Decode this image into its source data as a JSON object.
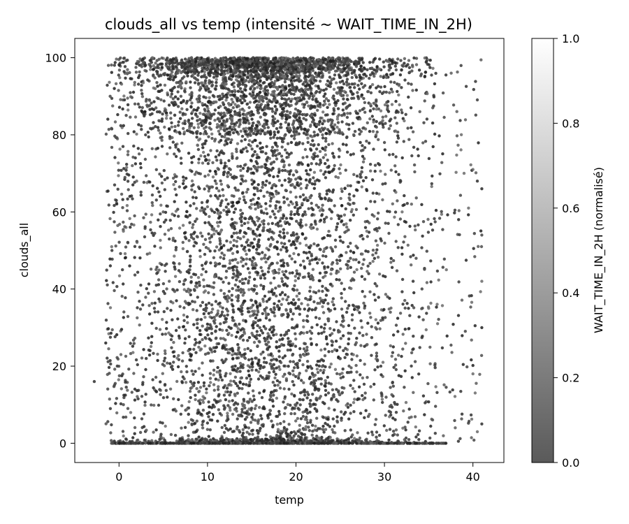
{
  "chart_data": {
    "type": "scatter",
    "title": "clouds_all vs temp (intensité ~ WAIT_TIME_IN_2H)",
    "xlabel": "temp",
    "ylabel": "clouds_all",
    "xlim": [
      -5,
      43.5
    ],
    "ylim": [
      -5,
      105
    ],
    "xticks": [
      0,
      10,
      20,
      30,
      40
    ],
    "yticks": [
      0,
      20,
      40,
      60,
      80,
      100
    ],
    "grid": false,
    "colorbar": {
      "label": "WAIT_TIME_IN_2H (normalisé)",
      "range": [
        0,
        1
      ],
      "ticks": [
        "0.0",
        "0.2",
        "0.4",
        "0.6",
        "0.8",
        "1.0"
      ],
      "colormap": "gray (semi-transparent)",
      "low_color": "#5a5a5a",
      "high_color": "#ffffff"
    },
    "point_color_dominant": "#2a2a2a",
    "series": [
      {
        "description_density": "dense scatter, approx. temp -2 to 41, clouds_all 0 to 100",
        "points_sample": [
          [
            -2.8,
            16
          ],
          [
            -1.5,
            26
          ],
          [
            -1.2,
            98
          ],
          [
            -1,
            90
          ],
          [
            -0.8,
            50
          ],
          [
            -0.5,
            67
          ],
          [
            -0.3,
            63
          ],
          [
            0.5,
            55
          ],
          [
            1,
            52
          ],
          [
            1.5,
            72
          ],
          [
            1.2,
            46
          ],
          [
            2,
            68
          ],
          [
            1.8,
            88
          ],
          [
            0.5,
            10
          ],
          [
            1,
            9
          ],
          [
            3,
            80
          ],
          [
            4,
            35
          ],
          [
            5,
            60
          ],
          [
            6,
            20
          ],
          [
            7,
            90
          ],
          [
            8,
            45
          ],
          [
            9,
            70
          ],
          [
            10,
            30
          ],
          [
            11,
            55
          ],
          [
            12,
            85
          ],
          [
            13,
            10
          ],
          [
            14,
            65
          ],
          [
            15,
            40
          ],
          [
            16,
            95
          ],
          [
            17,
            25
          ],
          [
            18,
            75
          ],
          [
            19,
            50
          ],
          [
            20,
            35
          ],
          [
            21,
            60
          ],
          [
            22,
            15
          ],
          [
            23,
            80
          ],
          [
            24,
            45
          ],
          [
            25,
            70
          ],
          [
            26,
            20
          ],
          [
            27,
            90
          ],
          [
            28,
            55
          ],
          [
            29,
            30
          ],
          [
            30,
            78
          ],
          [
            31,
            25
          ],
          [
            32,
            60
          ],
          [
            33,
            87
          ],
          [
            34,
            86
          ],
          [
            35,
            35
          ],
          [
            36,
            31
          ],
          [
            37,
            45
          ],
          [
            38,
            4
          ],
          [
            39,
            70
          ],
          [
            39.5,
            61
          ],
          [
            40,
            71
          ],
          [
            40.5,
            68
          ],
          [
            41,
            66
          ],
          [
            41,
            54
          ],
          [
            41,
            42
          ],
          [
            41,
            30
          ],
          [
            41,
            5
          ],
          [
            40.5,
            3
          ],
          [
            40,
            18
          ]
        ]
      }
    ]
  }
}
